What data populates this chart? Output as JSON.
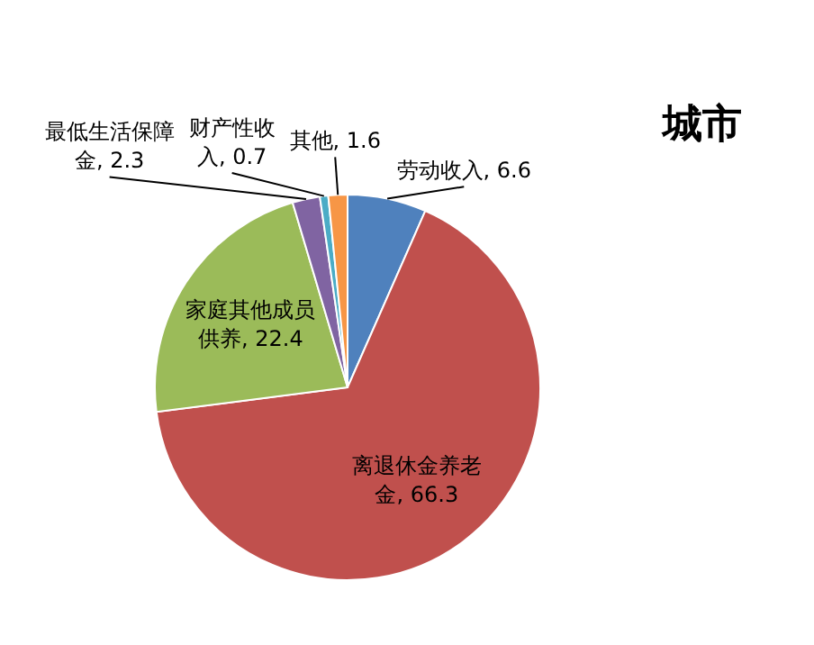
{
  "chart_data": {
    "type": "pie",
    "title": "城市",
    "categories": [
      "劳动收入",
      "离退休金养老金",
      "家庭其他成员供养",
      "最低生活保障金",
      "财产性收入",
      "其他"
    ],
    "values": [
      6.6,
      66.3,
      22.4,
      2.3,
      0.7,
      1.6
    ],
    "colors": [
      "#4f81bd",
      "#c0504d",
      "#9bbb59",
      "#8064a2",
      "#4bacc6",
      "#f79646"
    ],
    "value_labels": [
      ", 6.6",
      ", 66.3",
      ", 22.4",
      ", 2.3",
      ", 0.7",
      ", 1.6"
    ],
    "legend": false
  }
}
